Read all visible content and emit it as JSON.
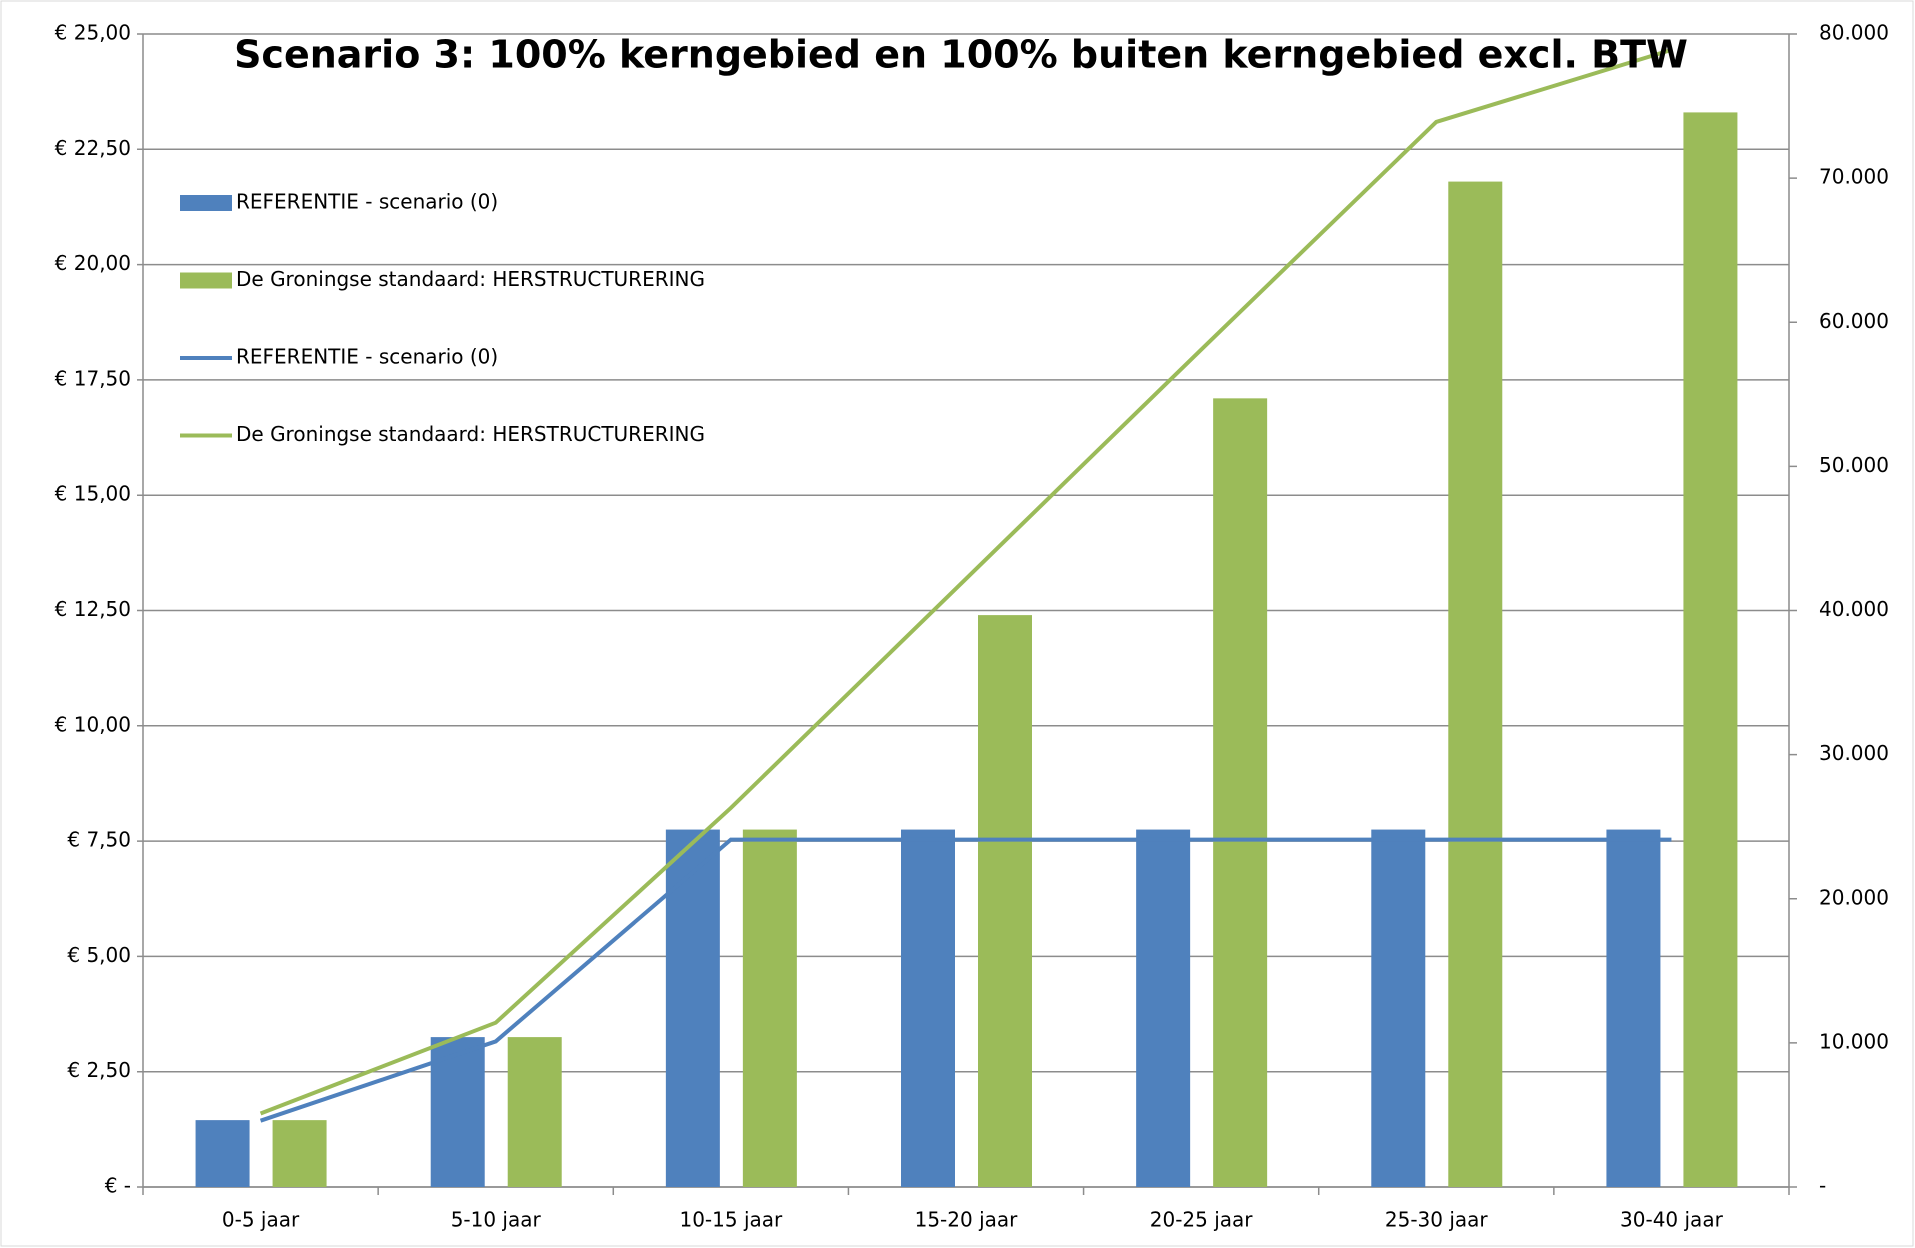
{
  "chart_data": {
    "type": "bar",
    "title": "Scenario 3: 100% kerngebied en 100% buiten kerngebied excl. BTW",
    "categories": [
      "0-5 jaar",
      "5-10 jaar",
      "10-15 jaar",
      "15-20 jaar",
      "20-25 jaar",
      "25-30 jaar",
      "30-40 jaar"
    ],
    "series": [
      {
        "name": "REFERENTIE - scenario (0)",
        "type": "bar",
        "color": "#4f81bd",
        "values": [
          1.45,
          3.25,
          7.75,
          7.75,
          7.75,
          7.75,
          7.75
        ]
      },
      {
        "name": "De Groningse standaard: HERSTRUCTURERING",
        "type": "bar",
        "color": "#9bbb59",
        "values": [
          1.45,
          3.25,
          7.75,
          12.4,
          17.1,
          21.8,
          23.3
        ]
      },
      {
        "name": "REFERENTIE - scenario (0)",
        "type": "line",
        "axis": "y2",
        "color": "#4f81bd",
        "values": [
          4600,
          10100,
          24100,
          24100,
          24100,
          24100,
          24100
        ]
      },
      {
        "name": "De Groningse standaard: HERSTRUCTURERING",
        "type": "line",
        "axis": "y2",
        "color": "#9bbb59",
        "values": [
          5100,
          11400,
          26300,
          42200,
          58100,
          73900,
          78900
        ]
      }
    ],
    "ylim": [
      0,
      25
    ],
    "yticks": [
      {
        "value": 0,
        "label": "€ -"
      },
      {
        "value": 2.5,
        "label": "€ 2,50"
      },
      {
        "value": 5,
        "label": "€ 5,00"
      },
      {
        "value": 7.5,
        "label": "€ 7,50"
      },
      {
        "value": 10,
        "label": "€ 10,00"
      },
      {
        "value": 12.5,
        "label": "€ 12,50"
      },
      {
        "value": 15,
        "label": "€ 15,00"
      },
      {
        "value": 17.5,
        "label": "€ 17,50"
      },
      {
        "value": 20,
        "label": "€ 20,00"
      },
      {
        "value": 22.5,
        "label": "€ 22,50"
      },
      {
        "value": 25,
        "label": "€ 25,00"
      }
    ],
    "y2lim": [
      0,
      80000
    ],
    "y2ticks": [
      {
        "value": 0,
        "label": "-"
      },
      {
        "value": 10000,
        "label": "10.000"
      },
      {
        "value": 20000,
        "label": "20.000"
      },
      {
        "value": 30000,
        "label": "30.000"
      },
      {
        "value": 40000,
        "label": "40.000"
      },
      {
        "value": 50000,
        "label": "50.000"
      },
      {
        "value": 60000,
        "label": "60.000"
      },
      {
        "value": 70000,
        "label": "70.000"
      },
      {
        "value": 80000,
        "label": "80.000"
      }
    ],
    "grid": true
  }
}
